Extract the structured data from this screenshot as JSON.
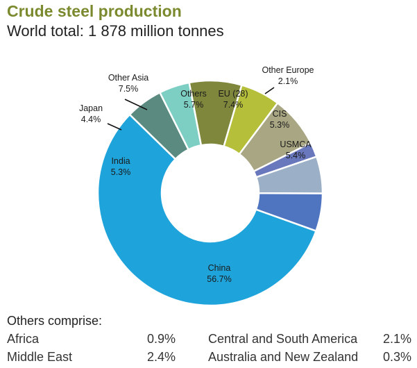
{
  "chart_data": {
    "type": "pie",
    "title": "Crude steel production",
    "subtitle": "World total: 1 878 million tonnes",
    "slices": [
      {
        "label": "China",
        "value_label": "56.7%",
        "value": 56.7,
        "color": "#1fa3db"
      },
      {
        "label": "India",
        "value_label": "5.3%",
        "value": 5.3,
        "color": "#5a8a80"
      },
      {
        "label": "Japan",
        "value_label": "4.4%",
        "value": 4.4,
        "color": "#7dcec3"
      },
      {
        "label": "Other Asia",
        "value_label": "7.5%",
        "value": 7.5,
        "color": "#7f873c"
      },
      {
        "label": "Others",
        "value_label": "5.7%",
        "value": 5.7,
        "color": "#b5bf3a"
      },
      {
        "label": "EU (28)",
        "value_label": "7.4%",
        "value": 7.4,
        "color": "#a9a683"
      },
      {
        "label": "Other Europe",
        "value_label": "2.1%",
        "value": 2.1,
        "color": "#6977bd"
      },
      {
        "label": "CIS",
        "value_label": "5.3%",
        "value": 5.3,
        "color": "#9bb0c6"
      },
      {
        "label": "USMCA",
        "value_label": "5.4%",
        "value": 5.4,
        "color": "#4f74c0"
      }
    ]
  },
  "others": {
    "title": "Others comprise:",
    "items": [
      {
        "label": "Africa",
        "value": "0.9%"
      },
      {
        "label": "Middle East",
        "value": "2.4%"
      },
      {
        "label": "Central and South America",
        "value": "2.1%"
      },
      {
        "label": "Australia and New Zealand",
        "value": "0.3%"
      }
    ]
  }
}
